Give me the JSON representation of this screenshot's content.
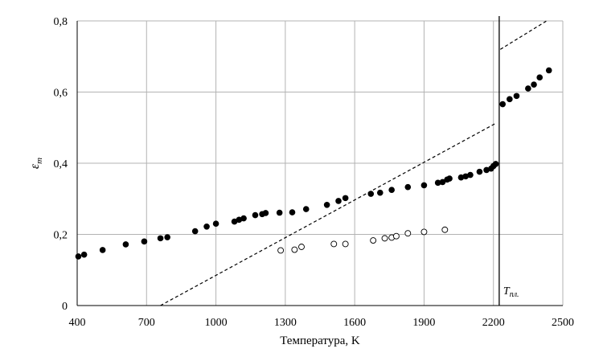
{
  "chart_data": {
    "type": "scatter",
    "xlabel": "Температура, K",
    "ylabel": "ε",
    "ylabel_sub": "m",
    "xlim": [
      400,
      2500
    ],
    "ylim": [
      0,
      0.8
    ],
    "x_ticks": [
      400,
      700,
      1000,
      1300,
      1600,
      1900,
      2200,
      2500
    ],
    "x_tick_labels": [
      "400",
      "700",
      "1000",
      "1300",
      "1600",
      "1900",
      "2200",
      "2500"
    ],
    "y_ticks": [
      0,
      0.2,
      0.4,
      0.6,
      0.8
    ],
    "y_tick_labels": [
      "0",
      "0,2",
      "0,4",
      "0,6",
      "0,8"
    ],
    "grid": true,
    "vertical_line": {
      "x": 2225,
      "label": "T",
      "label_sub": "пл."
    },
    "series": [
      {
        "marker": "filled-circle",
        "color": "#000000",
        "points": [
          [
            405,
            0.138
          ],
          [
            430,
            0.143
          ],
          [
            510,
            0.156
          ],
          [
            610,
            0.172
          ],
          [
            690,
            0.18
          ],
          [
            760,
            0.189
          ],
          [
            790,
            0.192
          ],
          [
            910,
            0.209
          ],
          [
            960,
            0.222
          ],
          [
            1000,
            0.23
          ],
          [
            1080,
            0.236
          ],
          [
            1100,
            0.241
          ],
          [
            1120,
            0.245
          ],
          [
            1170,
            0.254
          ],
          [
            1200,
            0.257
          ],
          [
            1215,
            0.26
          ],
          [
            1275,
            0.261
          ],
          [
            1330,
            0.262
          ],
          [
            1390,
            0.271
          ],
          [
            1480,
            0.283
          ],
          [
            1530,
            0.294
          ],
          [
            1560,
            0.302
          ],
          [
            1670,
            0.314
          ],
          [
            1710,
            0.317
          ],
          [
            1760,
            0.325
          ],
          [
            1830,
            0.333
          ],
          [
            1900,
            0.338
          ],
          [
            1960,
            0.345
          ],
          [
            1980,
            0.347
          ],
          [
            2000,
            0.354
          ],
          [
            2010,
            0.357
          ],
          [
            2060,
            0.36
          ],
          [
            2080,
            0.363
          ],
          [
            2100,
            0.367
          ],
          [
            2140,
            0.376
          ],
          [
            2170,
            0.381
          ],
          [
            2190,
            0.385
          ],
          [
            2200,
            0.392
          ],
          [
            2210,
            0.398
          ],
          [
            2240,
            0.566
          ],
          [
            2270,
            0.58
          ],
          [
            2300,
            0.589
          ],
          [
            2350,
            0.61
          ],
          [
            2375,
            0.621
          ],
          [
            2400,
            0.641
          ],
          [
            2440,
            0.661
          ]
        ]
      },
      {
        "marker": "open-circle",
        "color": "#000000",
        "points": [
          [
            1280,
            0.155
          ],
          [
            1340,
            0.157
          ],
          [
            1370,
            0.165
          ],
          [
            1510,
            0.173
          ],
          [
            1560,
            0.173
          ],
          [
            1680,
            0.183
          ],
          [
            1730,
            0.189
          ],
          [
            1760,
            0.191
          ],
          [
            1780,
            0.195
          ],
          [
            1830,
            0.203
          ],
          [
            1900,
            0.207
          ],
          [
            1990,
            0.213
          ]
        ]
      },
      {
        "line": "dashed",
        "color": "#000000",
        "points": [
          [
            760,
            0.0
          ],
          [
            2210,
            0.512
          ]
        ]
      },
      {
        "line": "dashed",
        "color": "#000000",
        "points": [
          [
            2230,
            0.72
          ],
          [
            2430,
            0.8
          ]
        ]
      }
    ]
  }
}
